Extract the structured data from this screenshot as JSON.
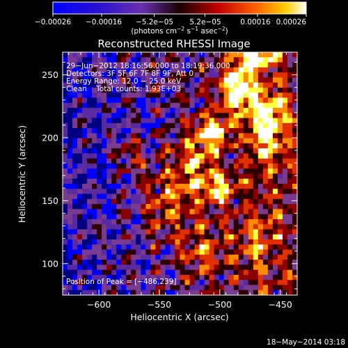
{
  "chart_data": {
    "type": "heatmap",
    "title": "Reconstructed RHESSI Image",
    "xlabel": "Heliocentric X (arcsec)",
    "ylabel": "Heliocentric Y (arcsec)",
    "xlim": [
      -630,
      -436
    ],
    "ylim": [
      75,
      268
    ],
    "x_ticks": [
      -600,
      -550,
      -500,
      -450
    ],
    "x_tick_labels": [
      "−600",
      "−550",
      "−500",
      "−450"
    ],
    "y_ticks": [
      100,
      150,
      200,
      250
    ],
    "y_tick_labels": [
      "100",
      "150",
      "200",
      "250"
    ],
    "colorbar": {
      "range": [
        -0.00026,
        0.00026
      ],
      "ticks": [
        -0.00026,
        -0.00016,
        -5.2e-05,
        5.2e-05,
        0.00016,
        0.00026
      ],
      "tick_labels": [
        "−0.00026",
        "−0.00016",
        "−5.2e−05",
        "5.2e−05",
        "0.00016",
        "0.00026"
      ],
      "units_text": "(photons cm",
      "units_sup1": "−2",
      "units_mid": " s",
      "units_sup2": "−1",
      "units_end": " asec",
      "units_sup3": "−2",
      "units_close": ")"
    },
    "info_lines": [
      "29−Jun−2012 18:16:56.000 to 18:19:36.000",
      "Detectors: 3F 5F 6F 7F 8F 9F, Att 0",
      "Energy Range: 12.0 − 25.0 keV",
      "Clean    Total counts: 1.93E+03"
    ],
    "peak_label": "Position of Peak = [−486,239]",
    "peak": {
      "x": -486,
      "y": 239
    },
    "colormap": [
      "#000080",
      "#0000ff",
      "#5a2aa0",
      "#7a3b8f",
      "#2a0000",
      "#8b0000",
      "#e03000",
      "#ff8c00",
      "#ffff40",
      "#ffffff"
    ],
    "blobs": [
      {
        "x": -486,
        "y": 239,
        "sx": 14,
        "sy": 18,
        "v": 1.0
      },
      {
        "x": -462,
        "y": 210,
        "sx": 16,
        "sy": 30,
        "v": 0.85
      },
      {
        "x": -505,
        "y": 205,
        "sx": 12,
        "sy": 12,
        "v": 0.85
      },
      {
        "x": -500,
        "y": 160,
        "sx": 12,
        "sy": 12,
        "v": 0.7
      },
      {
        "x": -520,
        "y": 180,
        "sx": 18,
        "sy": 30,
        "v": 0.55
      },
      {
        "x": -545,
        "y": 150,
        "sx": 22,
        "sy": 28,
        "v": 0.5
      },
      {
        "x": -515,
        "y": 110,
        "sx": 20,
        "sy": 20,
        "v": 0.45
      },
      {
        "x": -575,
        "y": 185,
        "sx": 12,
        "sy": 12,
        "v": 0.45
      },
      {
        "x": -470,
        "y": 120,
        "sx": 20,
        "sy": 30,
        "v": 0.35
      },
      {
        "x": -470,
        "y": 265,
        "sx": 18,
        "sy": 10,
        "v": 0.8
      }
    ],
    "grid": false,
    "date_stamp": "18−May−2014 03:18"
  }
}
